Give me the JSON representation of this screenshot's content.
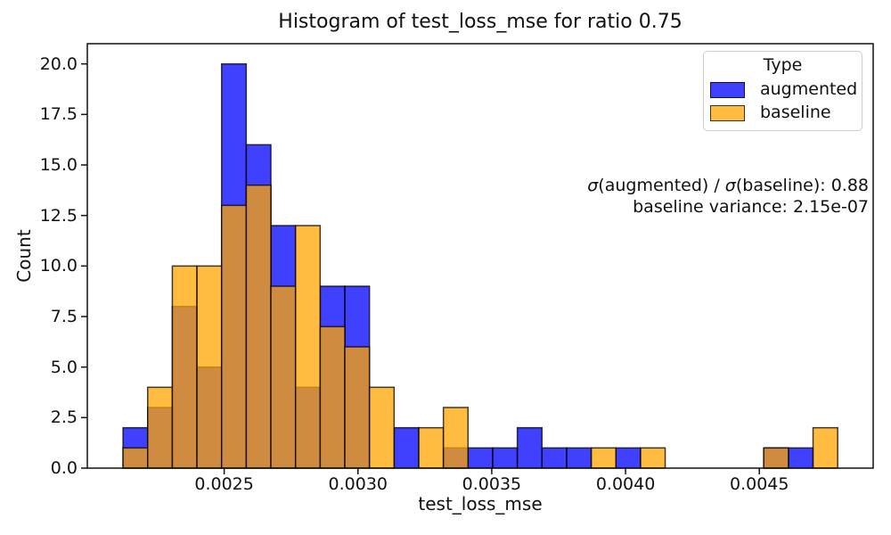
{
  "chart_data": {
    "type": "histogram",
    "title": "Histogram of test_loss_mse for ratio 0.75",
    "xlabel": "test_loss_mse",
    "ylabel": "Count",
    "bin_start": 0.002122,
    "bin_width": 9.21e-05,
    "bin_count": 29,
    "fill_alpha": 0.75,
    "edge_color": "#000000",
    "edge_alpha": 0.75,
    "series": [
      {
        "name": "augmented",
        "color": "#0000ff",
        "counts": [
          2,
          3,
          8,
          5,
          20,
          16,
          12,
          4,
          9,
          9,
          0,
          2,
          0,
          1,
          1,
          1,
          2,
          1,
          1,
          0,
          1,
          0,
          0,
          0,
          0,
          0,
          1,
          1,
          0
        ]
      },
      {
        "name": "baseline",
        "color": "#ffa500",
        "counts": [
          1,
          4,
          10,
          10,
          13,
          14,
          9,
          12,
          7,
          6,
          4,
          0,
          2,
          3,
          0,
          0,
          0,
          0,
          0,
          1,
          0,
          1,
          0,
          0,
          0,
          0,
          1,
          0,
          2
        ]
      }
    ],
    "xlim": [
      0.0019885,
      0.0049255
    ],
    "ylim": [
      0,
      21
    ],
    "xticks": {
      "values": [
        0.0025,
        0.003,
        0.0035,
        0.004,
        0.0045
      ],
      "labels": [
        "0.0025",
        "0.0030",
        "0.0035",
        "0.0040",
        "0.0045"
      ]
    },
    "yticks": {
      "values": [
        0,
        2.5,
        5,
        7.5,
        10,
        12.5,
        15,
        17.5,
        20
      ],
      "labels": [
        "0.0",
        "2.5",
        "5.0",
        "7.5",
        "10.0",
        "12.5",
        "15.0",
        "17.5",
        "20.0"
      ]
    },
    "legend": {
      "title": "Type",
      "entries": [
        {
          "label": "augmented",
          "color": "#0000ff"
        },
        {
          "label": "baseline",
          "color": "#ffa500"
        }
      ]
    },
    "annotation": {
      "sigma1": "σ",
      "line1_mid": "(augmented) / ",
      "sigma2": "σ",
      "line1_end": "(baseline): 0.88",
      "line2": "baseline variance: 2.15e-07"
    }
  }
}
